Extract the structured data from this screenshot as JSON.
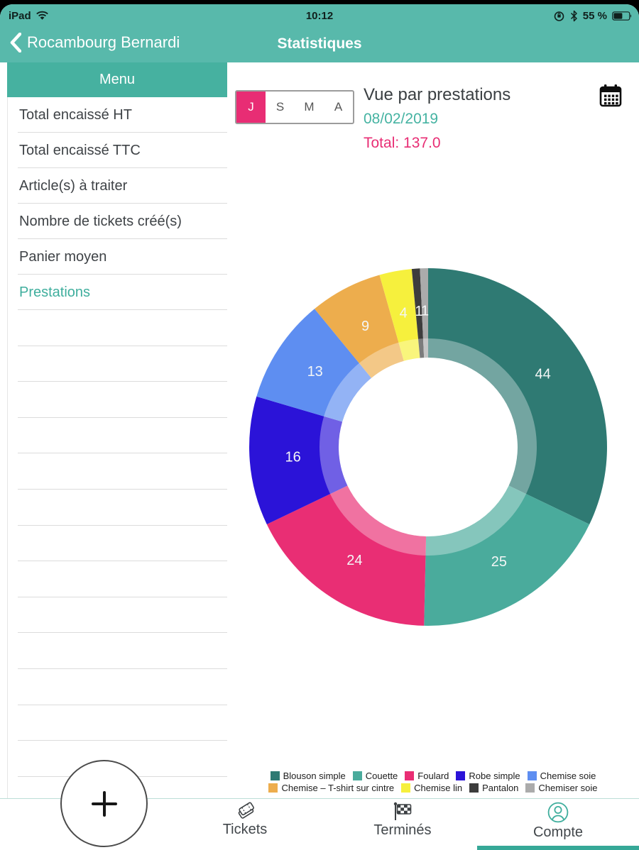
{
  "status_bar": {
    "device": "iPad",
    "time": "10:12",
    "battery_percent": "55 %"
  },
  "nav_bar": {
    "back_label": "Rocambourg Bernardi",
    "title": "Statistiques"
  },
  "sidebar": {
    "header": "Menu",
    "items": [
      {
        "label": "Total encaissé HT",
        "selected": false
      },
      {
        "label": "Total encaissé TTC",
        "selected": false
      },
      {
        "label": "Article(s) à traiter",
        "selected": false
      },
      {
        "label": "Nombre de tickets créé(s)",
        "selected": false
      },
      {
        "label": "Panier moyen",
        "selected": false
      },
      {
        "label": "Prestations",
        "selected": true
      }
    ]
  },
  "period_control": {
    "options": [
      "J",
      "S",
      "M",
      "A"
    ],
    "selected": "J"
  },
  "stats_header": {
    "title": "Vue par prestations",
    "date": "08/02/2019",
    "total_label": "Total: 137.0"
  },
  "chart_data": {
    "type": "pie",
    "donut": true,
    "title": "Vue par prestations",
    "date": "08/02/2019",
    "total": 137.0,
    "start_angle_deg": 0,
    "direction": "clockwise",
    "legend_position": "bottom",
    "series": [
      {
        "label": "Blouson simple",
        "value": 44,
        "color": "#2f7a73"
      },
      {
        "label": "Couette",
        "value": 25,
        "color": "#4aab9c"
      },
      {
        "label": "Foulard",
        "value": 24,
        "color": "#e92e74"
      },
      {
        "label": "Robe simple",
        "value": 16,
        "color": "#2b13d8"
      },
      {
        "label": "Chemise soie",
        "value": 13,
        "color": "#5e8ef1"
      },
      {
        "label": "Chemise – T-shirt sur cintre",
        "value": 9,
        "color": "#edad4d"
      },
      {
        "label": "Chemise lin",
        "value": 4,
        "color": "#f6f03d"
      },
      {
        "label": "Pantalon",
        "value": 1,
        "color": "#3d3d3d"
      },
      {
        "label": "Chemiser soie",
        "value": 1,
        "color": "#ababab"
      }
    ]
  },
  "tab_bar": {
    "tabs": [
      {
        "label": "Tickets",
        "icon": "tickets-icon",
        "active": false
      },
      {
        "label": "Terminés",
        "icon": "finish-flag-icon",
        "active": false
      },
      {
        "label": "Compte",
        "icon": "account-icon",
        "active": true
      }
    ]
  },
  "fab": {
    "label": "+"
  },
  "colors": {
    "header_teal": "#58b9ab",
    "menu_header_teal": "#46b1a0",
    "accent_teal": "#3fae9d",
    "accent_pink": "#e82d74",
    "tab_underline_teal": "#36a897"
  }
}
